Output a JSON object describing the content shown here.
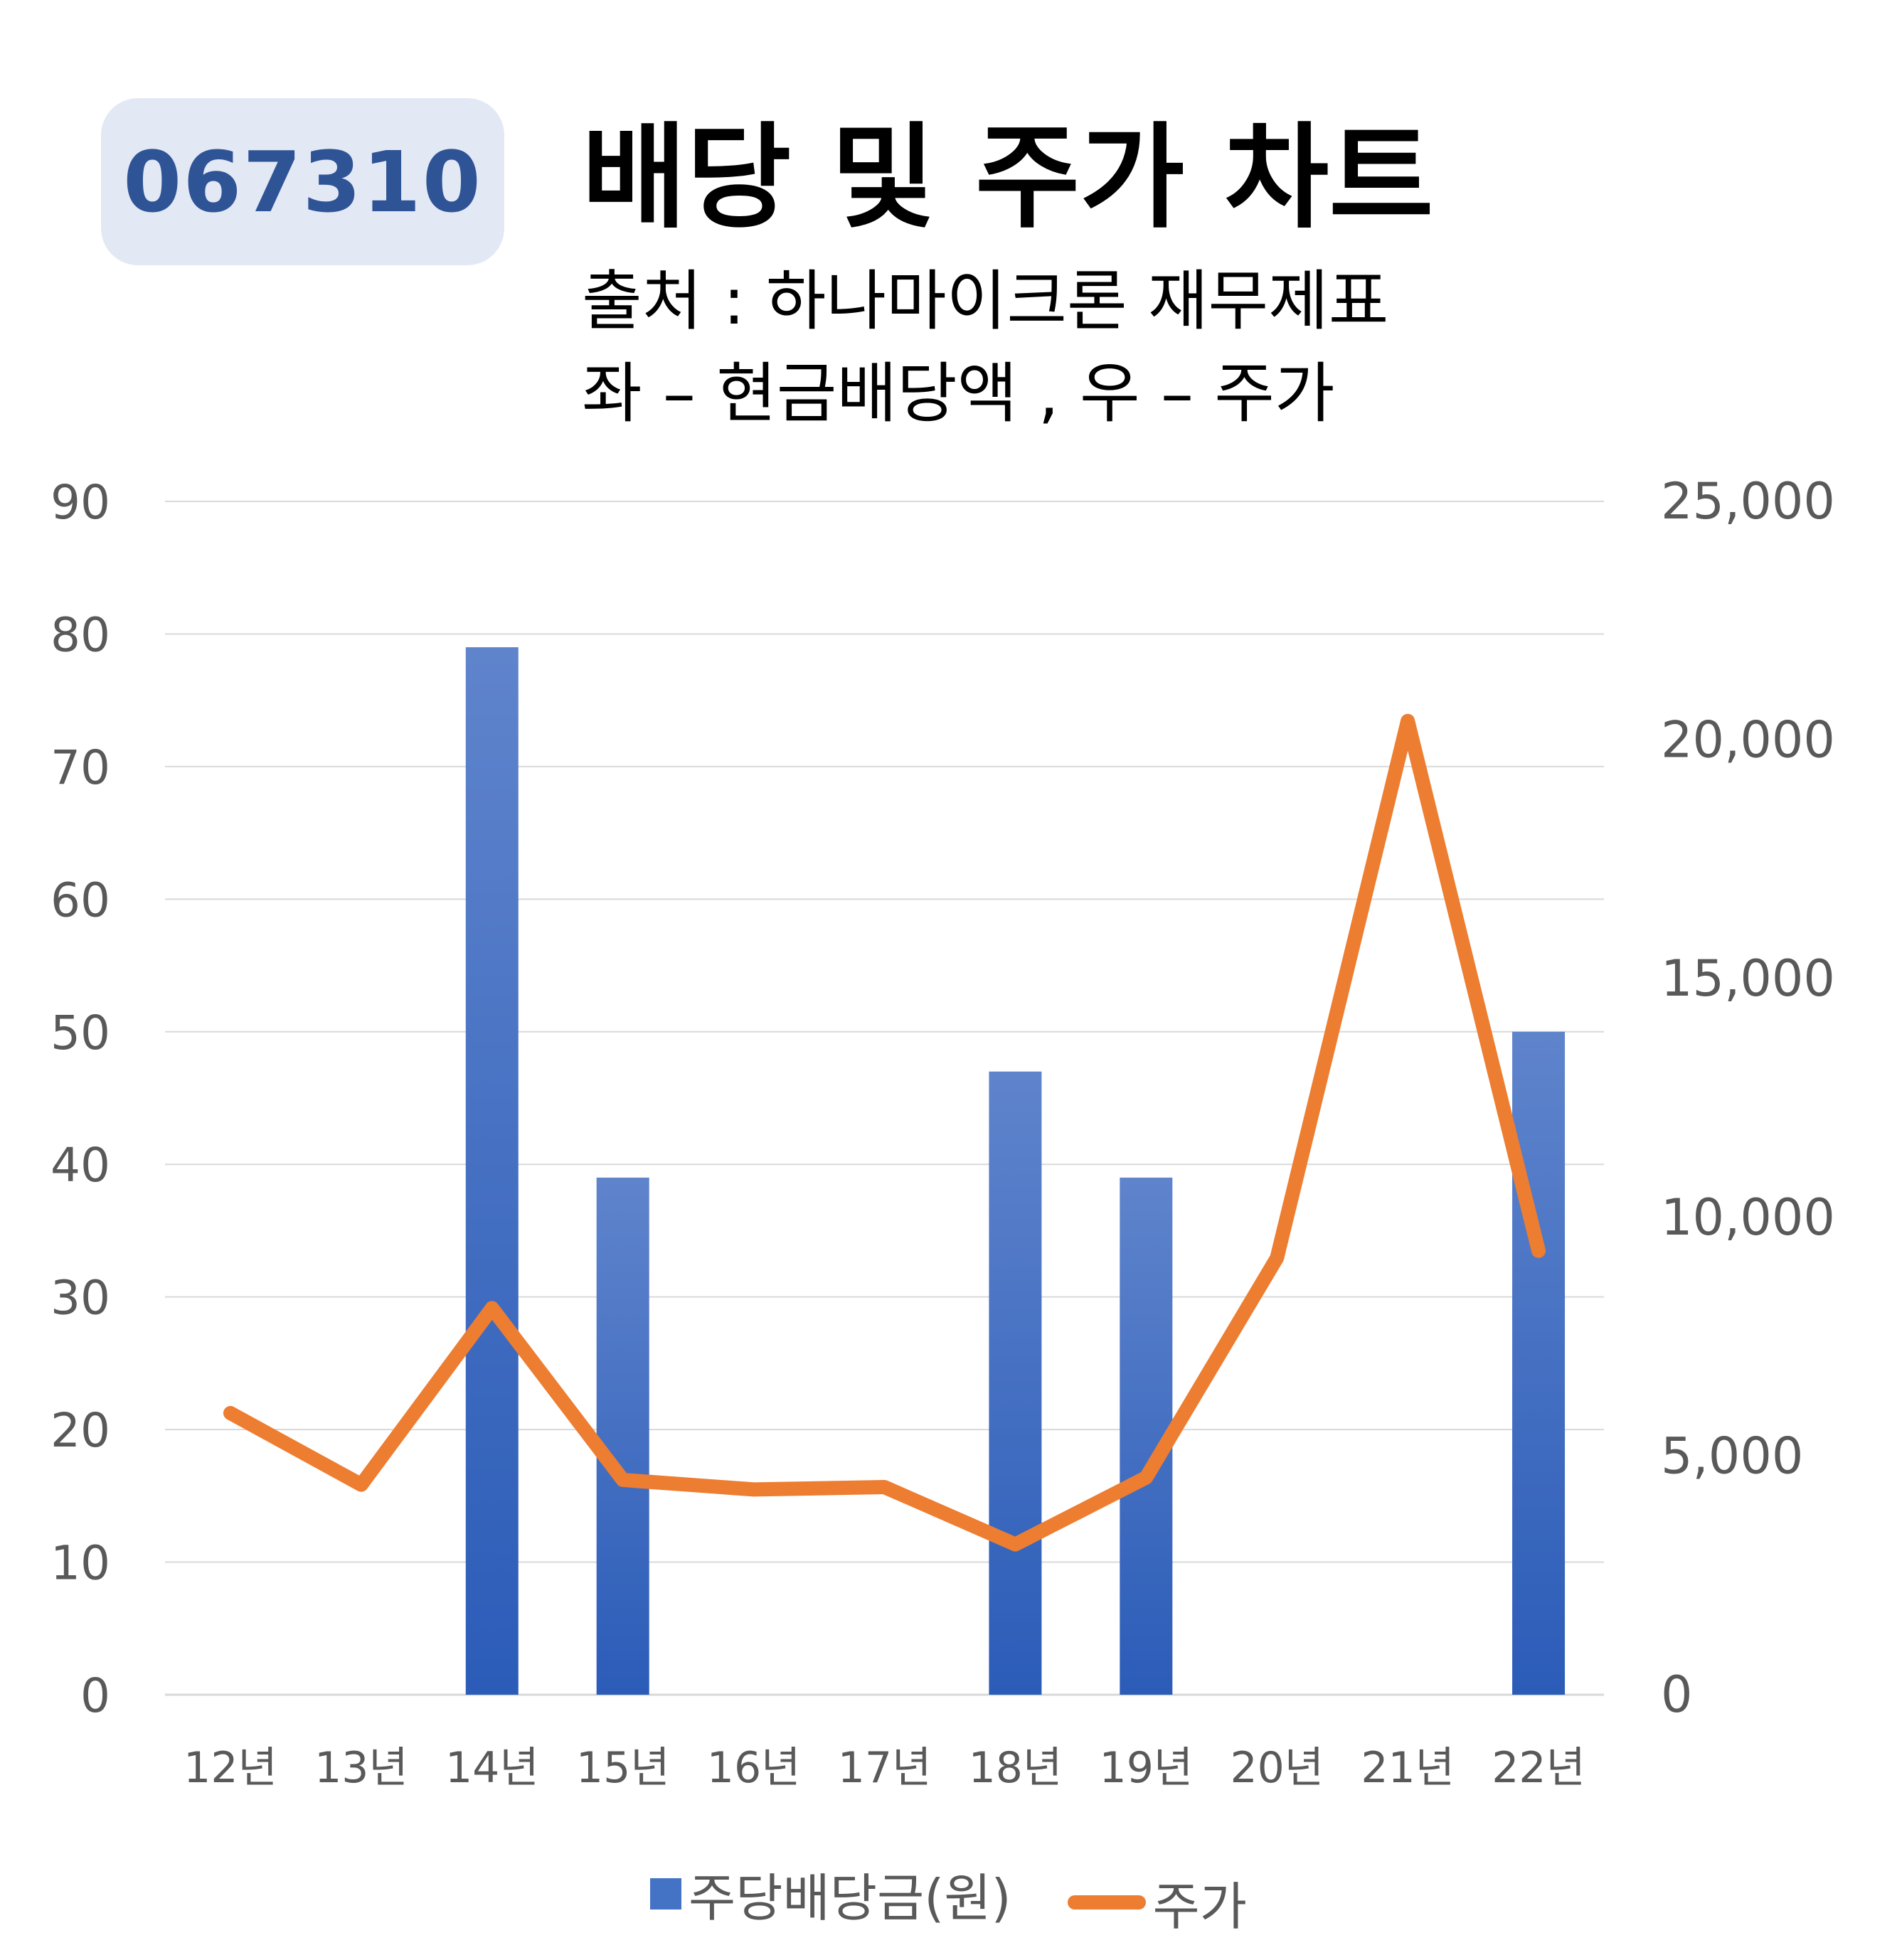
{
  "header": {
    "ticker": "067310",
    "title": "배당 및 주가 차트",
    "subtitle_source": "출처 : 하나마이크론 재무제표",
    "subtitle_axes": "좌 – 현금배당액  ,  우 – 주가"
  },
  "colors": {
    "bar": "#4472c4",
    "bar_dark": "#2b5cb8",
    "line": "#ed7d31",
    "grid": "#d9d9d9",
    "ticker_text": "#2f5496",
    "ticker_bg": "#e3e8f5"
  },
  "legend": {
    "bar_label": "주당배당금(원)",
    "line_label": "주가"
  },
  "chart_data": {
    "type": "bar",
    "categories": [
      "12년",
      "13년",
      "14년",
      "15년",
      "16년",
      "17년",
      "18년",
      "19년",
      "20년",
      "21년",
      "22년"
    ],
    "series": [
      {
        "name": "주당배당금(원)",
        "type": "bar",
        "axis": "left",
        "values": [
          0,
          0,
          79,
          39,
          0,
          0,
          47,
          39,
          0,
          0,
          50
        ]
      },
      {
        "name": "주가",
        "type": "line",
        "axis": "right",
        "values": [
          5900,
          4400,
          8100,
          4500,
          4300,
          4350,
          3150,
          4550,
          9150,
          20400,
          9300
        ]
      }
    ],
    "y_left": {
      "ylim": [
        0,
        90
      ],
      "ticks": [
        "0",
        "10",
        "20",
        "30",
        "40",
        "50",
        "60",
        "70",
        "80",
        "90"
      ]
    },
    "y_right": {
      "ylim": [
        0,
        25000
      ],
      "ticks": [
        "0",
        "5,000",
        "10,000",
        "15,000",
        "20,000",
        "25,000"
      ]
    },
    "grid": true,
    "legend_position": "bottom"
  }
}
